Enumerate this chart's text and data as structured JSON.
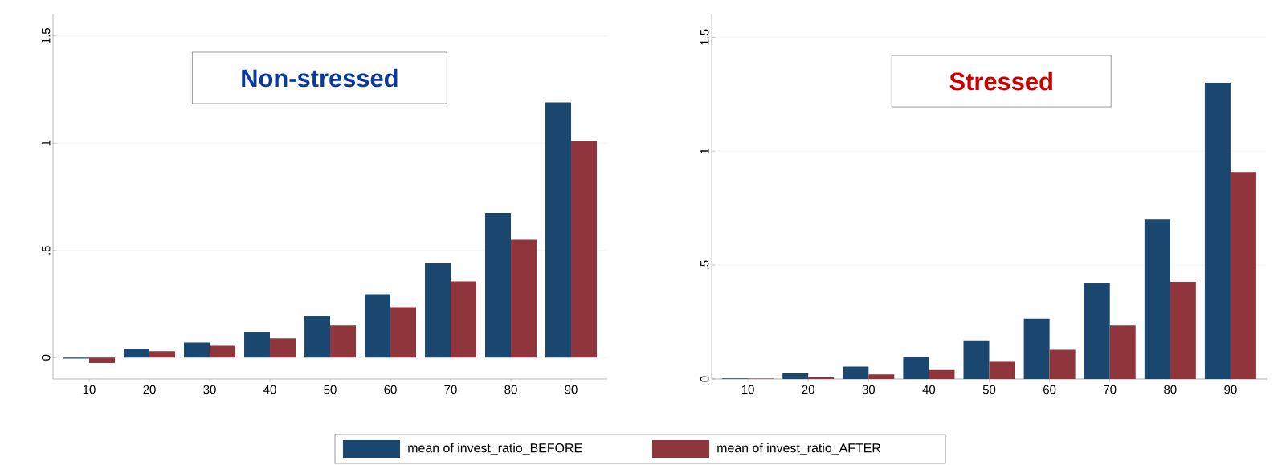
{
  "chart_data": [
    {
      "type": "bar",
      "title": "Non-stressed",
      "categories": [
        "10",
        "20",
        "30",
        "40",
        "50",
        "60",
        "70",
        "80",
        "90"
      ],
      "series": [
        {
          "color": "#1a476f",
          "values": [
            -0.005,
            0.04,
            0.07,
            0.12,
            0.195,
            0.295,
            0.44,
            0.675,
            1.19
          ]
        },
        {
          "color": "#90353b",
          "values": [
            -0.025,
            0.03,
            0.055,
            0.09,
            0.15,
            0.235,
            0.355,
            0.55,
            1.01
          ]
        }
      ],
      "ylim": [
        -0.1,
        1.6
      ],
      "yticks": [
        0,
        {
          "value": 0.5,
          "label": ".5"
        },
        1,
        1.5
      ],
      "grid": "y"
    },
    {
      "type": "bar",
      "title": "Stressed",
      "categories": [
        "10",
        "20",
        "30",
        "40",
        "50",
        "60",
        "70",
        "80",
        "90"
      ],
      "series": [
        {
          "name": "mean of invest_ratio_BEFORE",
          "color": "#1a476f",
          "values": [
            0.003,
            0.025,
            0.055,
            0.097,
            0.17,
            0.265,
            0.42,
            0.7,
            1.3
          ]
        },
        {
          "name": "mean of invest_ratio_AFTER",
          "color": "#90353b",
          "values": [
            0.002,
            0.007,
            0.02,
            0.04,
            0.076,
            0.129,
            0.235,
            0.426,
            0.908
          ]
        }
      ],
      "ylim": [
        0,
        1.6
      ],
      "yticks": [
        0,
        {
          "value": 0.5,
          "label": ".5"
        },
        1,
        1.5
      ],
      "grid": "y",
      "legend": "bottom"
    }
  ]
}
